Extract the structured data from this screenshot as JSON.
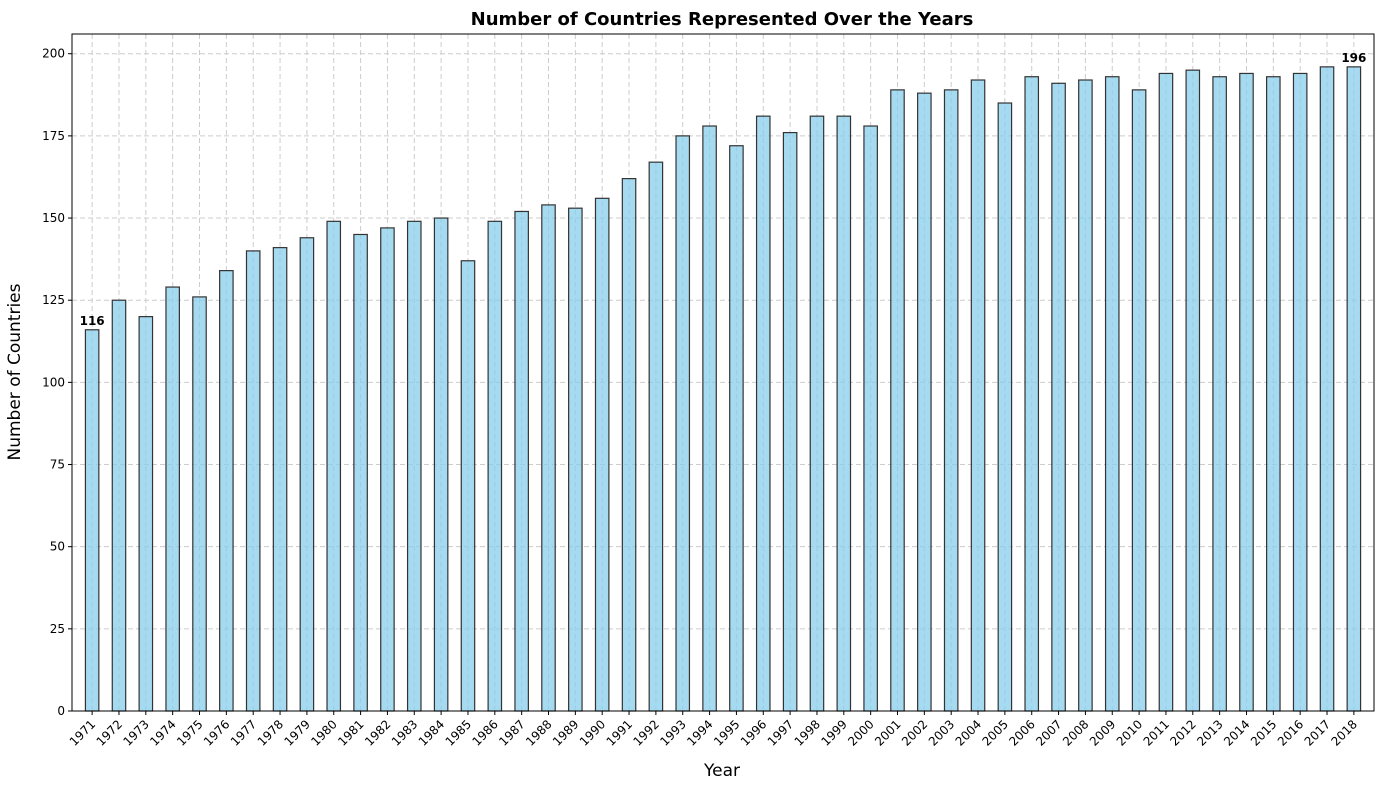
{
  "chart_data": {
    "type": "bar",
    "title": "Number of Countries Represented Over the Years",
    "xlabel": "Year",
    "ylabel": "Number of Countries",
    "ylim": [
      0,
      206
    ],
    "yticks": [
      0,
      25,
      50,
      75,
      100,
      125,
      150,
      175,
      200
    ],
    "grid": true,
    "bar_color": "#87CEEB",
    "bar_edge_color": "#333333",
    "categories": [
      "1971",
      "1972",
      "1973",
      "1974",
      "1975",
      "1976",
      "1977",
      "1978",
      "1979",
      "1980",
      "1981",
      "1982",
      "1983",
      "1984",
      "1985",
      "1986",
      "1987",
      "1988",
      "1989",
      "1990",
      "1991",
      "1992",
      "1993",
      "1994",
      "1995",
      "1996",
      "1997",
      "1998",
      "1999",
      "2000",
      "2001",
      "2002",
      "2003",
      "2004",
      "2005",
      "2006",
      "2007",
      "2008",
      "2009",
      "2010",
      "2011",
      "2012",
      "2013",
      "2014",
      "2015",
      "2016",
      "2017",
      "2018"
    ],
    "values": [
      116,
      125,
      120,
      129,
      126,
      134,
      140,
      141,
      144,
      149,
      145,
      147,
      149,
      150,
      137,
      149,
      152,
      154,
      153,
      156,
      162,
      167,
      175,
      178,
      172,
      181,
      176,
      181,
      181,
      178,
      189,
      188,
      189,
      192,
      185,
      193,
      191,
      192,
      193,
      189,
      194,
      195,
      193,
      194,
      193,
      194,
      196,
      196
    ],
    "annotations": [
      {
        "category": "1971",
        "text": "116"
      },
      {
        "category": "2018",
        "text": "196"
      }
    ]
  }
}
